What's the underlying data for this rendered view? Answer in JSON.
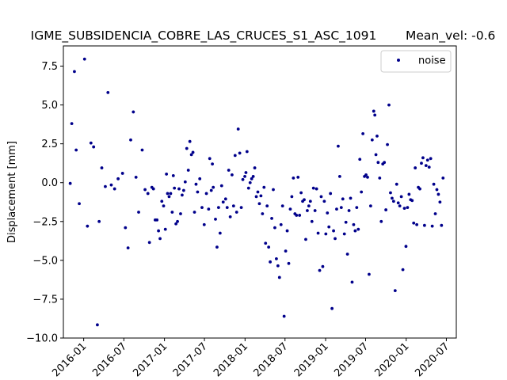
{
  "chart_data": {
    "type": "scatter",
    "title": "IGME_SUBSIDENCIA_COBRE_LAS_CRUCES_S1_ASC_1091",
    "title_right": "Mean_vel: -0.6",
    "xlabel": "",
    "ylabel": "Displacement [mm]",
    "xlim": [
      "2015-10-01",
      "2020-08-15"
    ],
    "ylim": [
      -10,
      8.8
    ],
    "x_ticks": [
      "2016-01",
      "2016-07",
      "2017-01",
      "2017-07",
      "2018-01",
      "2018-07",
      "2019-01",
      "2019-07",
      "2020-01",
      "2020-07"
    ],
    "y_ticks": [
      -10.0,
      -7.5,
      -5.0,
      -2.5,
      0.0,
      2.5,
      5.0,
      7.5
    ],
    "y_tick_labels": [
      "−10.0",
      "−7.5",
      "−5.0",
      "−2.5",
      "0.0",
      "2.5",
      "5.0",
      "7.5"
    ],
    "grid": false,
    "legend_position": "top-right",
    "series": [
      {
        "name": "noise",
        "color": "#00008b",
        "marker": "dot",
        "points": [
          [
            "2015-11-01",
            -0.05
          ],
          [
            "2015-11-08",
            3.8
          ],
          [
            "2015-11-20",
            7.15
          ],
          [
            "2015-11-28",
            2.1
          ],
          [
            "2015-12-12",
            -1.35
          ],
          [
            "2016-01-05",
            7.95
          ],
          [
            "2016-01-18",
            -2.8
          ],
          [
            "2016-02-03",
            2.55
          ],
          [
            "2016-02-15",
            2.3
          ],
          [
            "2016-03-03",
            -9.15
          ],
          [
            "2016-03-11",
            -2.5
          ],
          [
            "2016-03-23",
            0.95
          ],
          [
            "2016-04-08",
            -0.25
          ],
          [
            "2016-04-20",
            5.8
          ],
          [
            "2016-05-05",
            -0.15
          ],
          [
            "2016-05-20",
            -0.4
          ],
          [
            "2016-06-05",
            0.25
          ],
          [
            "2016-06-25",
            0.6
          ],
          [
            "2016-07-08",
            -2.9
          ],
          [
            "2016-07-20",
            -4.2
          ],
          [
            "2016-08-01",
            2.75
          ],
          [
            "2016-08-13",
            4.55
          ],
          [
            "2016-08-25",
            0.35
          ],
          [
            "2016-09-06",
            -1.9
          ],
          [
            "2016-09-22",
            2.1
          ],
          [
            "2016-10-05",
            -0.45
          ],
          [
            "2016-10-18",
            -0.7
          ],
          [
            "2016-10-25",
            -3.85
          ],
          [
            "2016-11-05",
            -0.3
          ],
          [
            "2016-11-12",
            -0.4
          ],
          [
            "2016-11-20",
            -2.4
          ],
          [
            "2016-11-28",
            -2.4
          ],
          [
            "2016-12-05",
            -3.1
          ],
          [
            "2016-12-12",
            -3.6
          ],
          [
            "2016-12-20",
            -1.2
          ],
          [
            "2016-12-28",
            -1.5
          ],
          [
            "2017-01-05",
            -3.0
          ],
          [
            "2017-01-10",
            0.55
          ],
          [
            "2017-01-15",
            -0.7
          ],
          [
            "2017-01-22",
            -0.9
          ],
          [
            "2017-01-29",
            -0.7
          ],
          [
            "2017-02-05",
            -1.9
          ],
          [
            "2017-02-10",
            0.45
          ],
          [
            "2017-02-15",
            -0.35
          ],
          [
            "2017-02-22",
            -2.65
          ],
          [
            "2017-03-01",
            -2.5
          ],
          [
            "2017-03-08",
            -0.4
          ],
          [
            "2017-03-15",
            -2.0
          ],
          [
            "2017-03-22",
            -0.8
          ],
          [
            "2017-03-29",
            -0.5
          ],
          [
            "2017-04-05",
            0.05
          ],
          [
            "2017-04-12",
            2.2
          ],
          [
            "2017-04-19",
            0.8
          ],
          [
            "2017-04-26",
            2.65
          ],
          [
            "2017-05-03",
            1.8
          ],
          [
            "2017-05-10",
            1.95
          ],
          [
            "2017-05-17",
            -1.9
          ],
          [
            "2017-05-24",
            -0.1
          ],
          [
            "2017-05-31",
            -0.6
          ],
          [
            "2017-06-10",
            0.25
          ],
          [
            "2017-06-20",
            -1.6
          ],
          [
            "2017-06-30",
            -2.7
          ],
          [
            "2017-07-10",
            -0.7
          ],
          [
            "2017-07-20",
            -1.7
          ],
          [
            "2017-07-25",
            1.55
          ],
          [
            "2017-08-01",
            -0.5
          ],
          [
            "2017-08-06",
            1.2
          ],
          [
            "2017-08-10",
            -0.3
          ],
          [
            "2017-08-20",
            -2.35
          ],
          [
            "2017-08-27",
            -4.15
          ],
          [
            "2017-09-03",
            -1.6
          ],
          [
            "2017-09-10",
            -3.25
          ],
          [
            "2017-09-17",
            -0.2
          ],
          [
            "2017-09-24",
            -1.25
          ],
          [
            "2017-10-05",
            -1.05
          ],
          [
            "2017-10-12",
            -1.6
          ],
          [
            "2017-10-19",
            0.8
          ],
          [
            "2017-10-26",
            -2.2
          ],
          [
            "2017-11-03",
            0.5
          ],
          [
            "2017-11-10",
            -1.5
          ],
          [
            "2017-11-17",
            1.75
          ],
          [
            "2017-11-24",
            -1.9
          ],
          [
            "2017-12-01",
            3.45
          ],
          [
            "2017-12-08",
            1.9
          ],
          [
            "2017-12-15",
            -1.6
          ],
          [
            "2017-12-22",
            0.2
          ],
          [
            "2017-12-31",
            0.4
          ],
          [
            "2018-01-05",
            0.65
          ],
          [
            "2018-01-10",
            2.0
          ],
          [
            "2018-01-17",
            -0.35
          ],
          [
            "2018-01-24",
            0.0
          ],
          [
            "2018-01-31",
            0.25
          ],
          [
            "2018-02-07",
            0.4
          ],
          [
            "2018-02-14",
            0.95
          ],
          [
            "2018-02-21",
            -0.9
          ],
          [
            "2018-02-28",
            -0.6
          ],
          [
            "2018-03-07",
            -1.35
          ],
          [
            "2018-03-14",
            -0.85
          ],
          [
            "2018-03-21",
            -2.0
          ],
          [
            "2018-03-28",
            -0.3
          ],
          [
            "2018-04-04",
            -3.9
          ],
          [
            "2018-04-11",
            -1.5
          ],
          [
            "2018-04-18",
            -4.15
          ],
          [
            "2018-04-25",
            -5.1
          ],
          [
            "2018-05-02",
            -2.3
          ],
          [
            "2018-05-09",
            -0.45
          ],
          [
            "2018-05-16",
            -2.9
          ],
          [
            "2018-05-23",
            -4.9
          ],
          [
            "2018-05-30",
            -5.35
          ],
          [
            "2018-06-06",
            -6.1
          ],
          [
            "2018-06-13",
            -2.7
          ],
          [
            "2018-06-20",
            -1.5
          ],
          [
            "2018-06-27",
            -8.6
          ],
          [
            "2018-07-04",
            -4.4
          ],
          [
            "2018-07-11",
            -3.1
          ],
          [
            "2018-07-18",
            -5.2
          ],
          [
            "2018-07-25",
            -1.7
          ],
          [
            "2018-08-01",
            -0.9
          ],
          [
            "2018-08-08",
            0.3
          ],
          [
            "2018-08-15",
            -2.0
          ],
          [
            "2018-08-22",
            -2.1
          ],
          [
            "2018-08-29",
            0.35
          ],
          [
            "2018-09-05",
            -2.1
          ],
          [
            "2018-09-12",
            -0.65
          ],
          [
            "2018-09-19",
            -1.2
          ],
          [
            "2018-09-26",
            -1.1
          ],
          [
            "2018-10-03",
            -3.65
          ],
          [
            "2018-10-10",
            -1.8
          ],
          [
            "2018-10-17",
            -1.5
          ],
          [
            "2018-10-24",
            -1.2
          ],
          [
            "2018-10-31",
            -2.5
          ],
          [
            "2018-11-07",
            -0.35
          ],
          [
            "2018-11-14",
            -1.8
          ],
          [
            "2018-11-21",
            -0.4
          ],
          [
            "2018-11-28",
            -3.25
          ],
          [
            "2018-12-05",
            -5.65
          ],
          [
            "2018-12-12",
            -0.9
          ],
          [
            "2018-12-19",
            -5.4
          ],
          [
            "2018-12-26",
            -1.2
          ],
          [
            "2019-01-02",
            -3.3
          ],
          [
            "2019-01-09",
            -1.95
          ],
          [
            "2019-01-16",
            -2.85
          ],
          [
            "2019-01-23",
            -0.7
          ],
          [
            "2019-01-30",
            -8.1
          ],
          [
            "2019-02-06",
            -3.1
          ],
          [
            "2019-02-13",
            -3.6
          ],
          [
            "2019-02-20",
            -1.7
          ],
          [
            "2019-02-27",
            2.35
          ],
          [
            "2019-03-06",
            0.4
          ],
          [
            "2019-03-13",
            -1.6
          ],
          [
            "2019-03-20",
            -1.05
          ],
          [
            "2019-03-27",
            -3.3
          ],
          [
            "2019-04-03",
            -2.55
          ],
          [
            "2019-04-10",
            -4.6
          ],
          [
            "2019-04-17",
            -1.8
          ],
          [
            "2019-04-24",
            -1.0
          ],
          [
            "2019-05-01",
            -6.4
          ],
          [
            "2019-05-08",
            -2.7
          ],
          [
            "2019-05-15",
            -3.1
          ],
          [
            "2019-05-22",
            -1.6
          ],
          [
            "2019-05-29",
            -3.0
          ],
          [
            "2019-06-05",
            1.5
          ],
          [
            "2019-06-12",
            -0.6
          ],
          [
            "2019-06-19",
            3.15
          ],
          [
            "2019-06-26",
            0.4
          ],
          [
            "2019-07-03",
            0.5
          ],
          [
            "2019-07-10",
            0.35
          ],
          [
            "2019-07-17",
            -5.9
          ],
          [
            "2019-07-24",
            -1.5
          ],
          [
            "2019-07-31",
            2.75
          ],
          [
            "2019-08-07",
            4.6
          ],
          [
            "2019-08-12",
            4.35
          ],
          [
            "2019-08-17",
            1.8
          ],
          [
            "2019-08-22",
            3.0
          ],
          [
            "2019-08-27",
            1.3
          ],
          [
            "2019-09-03",
            0.3
          ],
          [
            "2019-09-10",
            -2.5
          ],
          [
            "2019-09-17",
            1.2
          ],
          [
            "2019-09-24",
            1.3
          ],
          [
            "2019-10-01",
            -1.75
          ],
          [
            "2019-10-08",
            2.45
          ],
          [
            "2019-10-15",
            5.0
          ],
          [
            "2019-10-22",
            -0.65
          ],
          [
            "2019-10-29",
            -1.0
          ],
          [
            "2019-11-05",
            -1.2
          ],
          [
            "2019-11-12",
            -6.95
          ],
          [
            "2019-11-19",
            -0.1
          ],
          [
            "2019-11-26",
            -1.3
          ],
          [
            "2019-12-03",
            -1.5
          ],
          [
            "2019-12-10",
            -0.9
          ],
          [
            "2019-12-17",
            -5.6
          ],
          [
            "2019-12-24",
            -1.65
          ],
          [
            "2019-12-31",
            -4.1
          ],
          [
            "2020-01-07",
            -1.6
          ],
          [
            "2020-01-14",
            -0.75
          ],
          [
            "2020-01-21",
            -1.1
          ],
          [
            "2020-01-28",
            -1.15
          ],
          [
            "2020-02-04",
            -2.6
          ],
          [
            "2020-02-11",
            0.95
          ],
          [
            "2020-02-18",
            -2.7
          ],
          [
            "2020-02-25",
            -0.3
          ],
          [
            "2020-03-03",
            -0.4
          ],
          [
            "2020-03-10",
            1.25
          ],
          [
            "2020-03-17",
            1.6
          ],
          [
            "2020-03-24",
            -2.75
          ],
          [
            "2020-03-31",
            1.1
          ],
          [
            "2020-04-07",
            1.45
          ],
          [
            "2020-04-14",
            1.0
          ],
          [
            "2020-04-21",
            1.55
          ],
          [
            "2020-04-28",
            -2.8
          ],
          [
            "2020-05-05",
            -0.1
          ],
          [
            "2020-05-12",
            -2.0
          ],
          [
            "2020-05-19",
            -0.45
          ],
          [
            "2020-05-26",
            -0.75
          ],
          [
            "2020-06-02",
            -1.25
          ],
          [
            "2020-06-09",
            -2.75
          ],
          [
            "2020-06-16",
            0.3
          ]
        ]
      }
    ]
  }
}
